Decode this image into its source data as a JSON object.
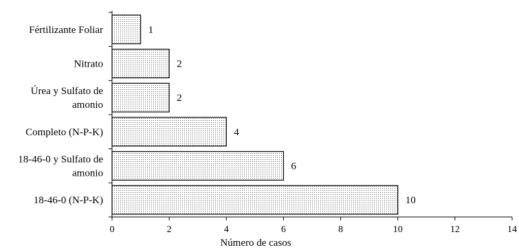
{
  "chart_data": {
    "type": "bar",
    "orientation": "horizontal",
    "categories": [
      [
        "Fértilizante Foliar"
      ],
      [
        "Nitrato"
      ],
      [
        "Úrea y Sulfato de",
        "amonio"
      ],
      [
        "Completo (N-P-K)"
      ],
      [
        "18-46-0 y Sulfato de",
        "amonio"
      ],
      [
        "18-46-0 (N-P-K)"
      ]
    ],
    "values": [
      1,
      2,
      2,
      4,
      6,
      10
    ],
    "data_labels": [
      "1",
      "2",
      "2",
      "4",
      "6",
      "10"
    ],
    "xlabel": "Número de casos",
    "ylabel": "",
    "xlim": [
      0,
      14
    ],
    "xticks": [
      0,
      2,
      4,
      6,
      8,
      10,
      12,
      14
    ],
    "grid": false,
    "bar_fill": "dotted",
    "colors": {
      "bar_stroke": "#000000",
      "bar_dots": "#555555",
      "axis": "#000000"
    }
  }
}
